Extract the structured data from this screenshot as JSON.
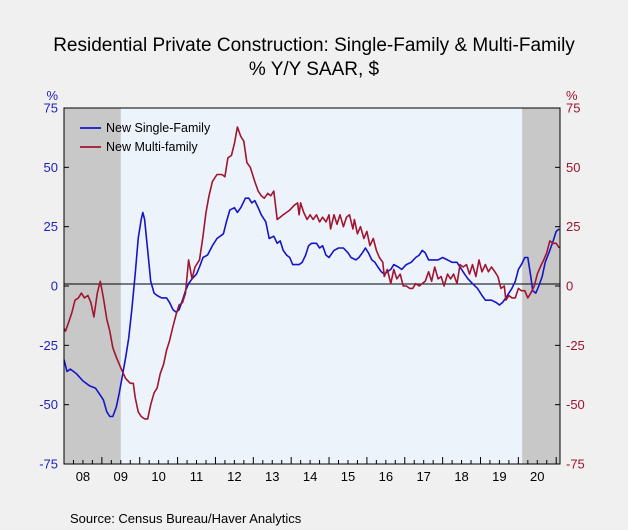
{
  "chart_data": {
    "type": "line",
    "title": "Residential Private Construction: Single-Family & Multi-Family",
    "subtitle": "% Y/Y   SAAR, $",
    "ylabel_left": "%",
    "ylabel_right": "%",
    "ylim": [
      -75,
      75
    ],
    "yticks": [
      75,
      50,
      25,
      0,
      -25,
      -50,
      -75
    ],
    "ytick_labels": [
      "75",
      "50",
      "25",
      "0",
      "-25",
      "-50",
      "-75"
    ],
    "xlim": [
      2008.0,
      2021.1
    ],
    "x_tick_labels": [
      "08",
      "09",
      "10",
      "11",
      "12",
      "13",
      "14",
      "15",
      "16",
      "17",
      "18",
      "19",
      "20"
    ],
    "recessions": [
      [
        2008.0,
        2009.5
      ],
      [
        2020.1,
        2021.1
      ]
    ],
    "legend_placement": "top-left",
    "source": "Source:   Census Bureau/Haver Analytics",
    "colors": {
      "single": "#1515c8",
      "multi": "#a01530",
      "recession": "#c8c8c8",
      "plot_bg": "#edf3fb"
    },
    "series": [
      {
        "name": "New Single-Family",
        "points": [
          [
            2008.0,
            -31
          ],
          [
            2008.08,
            -36
          ],
          [
            2008.17,
            -35
          ],
          [
            2008.33,
            -37
          ],
          [
            2008.5,
            -40
          ],
          [
            2008.67,
            -42
          ],
          [
            2008.83,
            -43
          ],
          [
            2008.96,
            -46
          ],
          [
            2009.04,
            -48
          ],
          [
            2009.13,
            -53
          ],
          [
            2009.21,
            -55
          ],
          [
            2009.29,
            -55
          ],
          [
            2009.38,
            -51
          ],
          [
            2009.46,
            -45
          ],
          [
            2009.54,
            -38
          ],
          [
            2009.63,
            -30
          ],
          [
            2009.71,
            -22
          ],
          [
            2009.79,
            -10
          ],
          [
            2009.88,
            5
          ],
          [
            2009.96,
            20
          ],
          [
            2010.04,
            28
          ],
          [
            2010.08,
            31
          ],
          [
            2010.13,
            28
          ],
          [
            2010.21,
            15
          ],
          [
            2010.29,
            2
          ],
          [
            2010.38,
            -3
          ],
          [
            2010.46,
            -4
          ],
          [
            2010.58,
            -5
          ],
          [
            2010.71,
            -5
          ],
          [
            2010.79,
            -7
          ],
          [
            2010.88,
            -10
          ],
          [
            2010.96,
            -11
          ],
          [
            2011.04,
            -10
          ],
          [
            2011.13,
            -6
          ],
          [
            2011.21,
            -2
          ],
          [
            2011.29,
            1
          ],
          [
            2011.38,
            3
          ],
          [
            2011.5,
            5
          ],
          [
            2011.58,
            8
          ],
          [
            2011.67,
            12
          ],
          [
            2011.79,
            13
          ],
          [
            2011.92,
            17
          ],
          [
            2012.04,
            20
          ],
          [
            2012.21,
            22
          ],
          [
            2012.29,
            27
          ],
          [
            2012.38,
            32
          ],
          [
            2012.5,
            33
          ],
          [
            2012.58,
            31
          ],
          [
            2012.67,
            33
          ],
          [
            2012.79,
            37
          ],
          [
            2012.88,
            37
          ],
          [
            2012.96,
            35
          ],
          [
            2013.04,
            36
          ],
          [
            2013.13,
            33
          ],
          [
            2013.21,
            30
          ],
          [
            2013.33,
            27
          ],
          [
            2013.42,
            20
          ],
          [
            2013.54,
            21
          ],
          [
            2013.63,
            18
          ],
          [
            2013.71,
            19
          ],
          [
            2013.79,
            15
          ],
          [
            2013.88,
            13
          ],
          [
            2013.96,
            12
          ],
          [
            2014.04,
            9
          ],
          [
            2014.21,
            9
          ],
          [
            2014.29,
            10
          ],
          [
            2014.38,
            13
          ],
          [
            2014.46,
            17
          ],
          [
            2014.54,
            18
          ],
          [
            2014.67,
            18
          ],
          [
            2014.75,
            16
          ],
          [
            2014.83,
            17
          ],
          [
            2014.92,
            13
          ],
          [
            2015.0,
            12
          ],
          [
            2015.13,
            15
          ],
          [
            2015.25,
            16
          ],
          [
            2015.38,
            16
          ],
          [
            2015.5,
            14
          ],
          [
            2015.58,
            12
          ],
          [
            2015.71,
            11
          ],
          [
            2015.79,
            12
          ],
          [
            2015.88,
            14
          ],
          [
            2015.96,
            16
          ],
          [
            2016.04,
            14
          ],
          [
            2016.13,
            11
          ],
          [
            2016.21,
            10
          ],
          [
            2016.29,
            8
          ],
          [
            2016.38,
            6
          ],
          [
            2016.46,
            5
          ],
          [
            2016.54,
            6
          ],
          [
            2016.63,
            7
          ],
          [
            2016.71,
            9
          ],
          [
            2016.83,
            8
          ],
          [
            2016.92,
            7
          ],
          [
            2017.04,
            9
          ],
          [
            2017.17,
            10
          ],
          [
            2017.29,
            12
          ],
          [
            2017.38,
            13
          ],
          [
            2017.46,
            15
          ],
          [
            2017.54,
            14
          ],
          [
            2017.63,
            11
          ],
          [
            2017.75,
            11
          ],
          [
            2017.88,
            11
          ],
          [
            2018.0,
            12
          ],
          [
            2018.13,
            11
          ],
          [
            2018.25,
            10
          ],
          [
            2018.38,
            10
          ],
          [
            2018.5,
            7
          ],
          [
            2018.58,
            5
          ],
          [
            2018.67,
            3
          ],
          [
            2018.79,
            1
          ],
          [
            2018.92,
            -1
          ],
          [
            2019.04,
            -4
          ],
          [
            2019.13,
            -6
          ],
          [
            2019.29,
            -6
          ],
          [
            2019.42,
            -7
          ],
          [
            2019.5,
            -8
          ],
          [
            2019.58,
            -7
          ],
          [
            2019.67,
            -5
          ],
          [
            2019.75,
            -3
          ],
          [
            2019.83,
            -1
          ],
          [
            2019.92,
            2
          ],
          [
            2020.0,
            7
          ],
          [
            2020.08,
            9
          ],
          [
            2020.17,
            12
          ],
          [
            2020.25,
            12
          ],
          [
            2020.33,
            4
          ],
          [
            2020.38,
            -2
          ],
          [
            2020.46,
            -3
          ],
          [
            2020.54,
            0
          ],
          [
            2020.63,
            4
          ],
          [
            2020.71,
            10
          ],
          [
            2020.83,
            15
          ],
          [
            2020.92,
            19
          ],
          [
            2021.0,
            23
          ],
          [
            2021.08,
            24
          ]
        ]
      },
      {
        "name": "New Multi-family",
        "points": [
          [
            2008.0,
            -18
          ],
          [
            2008.04,
            -19
          ],
          [
            2008.13,
            -15
          ],
          [
            2008.21,
            -11
          ],
          [
            2008.29,
            -6
          ],
          [
            2008.38,
            -5
          ],
          [
            2008.46,
            -3
          ],
          [
            2008.54,
            -5
          ],
          [
            2008.63,
            -4
          ],
          [
            2008.71,
            -7
          ],
          [
            2008.79,
            -13
          ],
          [
            2008.88,
            -3
          ],
          [
            2008.96,
            2
          ],
          [
            2009.04,
            -5
          ],
          [
            2009.13,
            -14
          ],
          [
            2009.21,
            -19
          ],
          [
            2009.29,
            -26
          ],
          [
            2009.38,
            -30
          ],
          [
            2009.46,
            -33
          ],
          [
            2009.54,
            -36
          ],
          [
            2009.63,
            -39
          ],
          [
            2009.75,
            -41
          ],
          [
            2009.83,
            -41
          ],
          [
            2009.88,
            -47
          ],
          [
            2009.96,
            -53
          ],
          [
            2010.04,
            -55
          ],
          [
            2010.13,
            -56
          ],
          [
            2010.21,
            -56
          ],
          [
            2010.29,
            -50
          ],
          [
            2010.38,
            -45
          ],
          [
            2010.46,
            -43
          ],
          [
            2010.54,
            -37
          ],
          [
            2010.63,
            -33
          ],
          [
            2010.71,
            -27
          ],
          [
            2010.79,
            -23
          ],
          [
            2010.88,
            -17
          ],
          [
            2010.96,
            -12
          ],
          [
            2011.04,
            -8
          ],
          [
            2011.13,
            -7
          ],
          [
            2011.21,
            -3
          ],
          [
            2011.29,
            11
          ],
          [
            2011.38,
            3
          ],
          [
            2011.46,
            8
          ],
          [
            2011.58,
            11
          ],
          [
            2011.67,
            21
          ],
          [
            2011.75,
            31
          ],
          [
            2011.83,
            38
          ],
          [
            2011.92,
            44
          ],
          [
            2012.04,
            47
          ],
          [
            2012.17,
            47
          ],
          [
            2012.25,
            46
          ],
          [
            2012.33,
            54
          ],
          [
            2012.42,
            55
          ],
          [
            2012.5,
            60
          ],
          [
            2012.58,
            67
          ],
          [
            2012.67,
            63
          ],
          [
            2012.75,
            61
          ],
          [
            2012.83,
            52
          ],
          [
            2012.92,
            50
          ],
          [
            2013.04,
            44
          ],
          [
            2013.13,
            40
          ],
          [
            2013.21,
            38
          ],
          [
            2013.29,
            37
          ],
          [
            2013.38,
            39
          ],
          [
            2013.46,
            38
          ],
          [
            2013.54,
            40
          ],
          [
            2013.63,
            28
          ],
          [
            2013.71,
            29
          ],
          [
            2013.79,
            30
          ],
          [
            2013.88,
            31
          ],
          [
            2013.96,
            32
          ],
          [
            2014.08,
            34
          ],
          [
            2014.17,
            35
          ],
          [
            2014.21,
            30
          ],
          [
            2014.25,
            35
          ],
          [
            2014.33,
            31
          ],
          [
            2014.42,
            28
          ],
          [
            2014.5,
            30
          ],
          [
            2014.58,
            28
          ],
          [
            2014.67,
            30
          ],
          [
            2014.75,
            27
          ],
          [
            2014.83,
            29
          ],
          [
            2014.92,
            27
          ],
          [
            2015.0,
            30
          ],
          [
            2015.04,
            24
          ],
          [
            2015.13,
            30
          ],
          [
            2015.21,
            26
          ],
          [
            2015.29,
            30
          ],
          [
            2015.38,
            25
          ],
          [
            2015.46,
            29
          ],
          [
            2015.54,
            30
          ],
          [
            2015.63,
            24
          ],
          [
            2015.67,
            28
          ],
          [
            2015.75,
            22
          ],
          [
            2015.83,
            25
          ],
          [
            2015.92,
            20
          ],
          [
            2016.0,
            23
          ],
          [
            2016.08,
            17
          ],
          [
            2016.17,
            20
          ],
          [
            2016.25,
            15
          ],
          [
            2016.33,
            12
          ],
          [
            2016.42,
            10
          ],
          [
            2016.46,
            4
          ],
          [
            2016.54,
            7
          ],
          [
            2016.63,
            1
          ],
          [
            2016.71,
            7
          ],
          [
            2016.79,
            3
          ],
          [
            2016.88,
            5
          ],
          [
            2016.96,
            0
          ],
          [
            2017.04,
            0
          ],
          [
            2017.13,
            -1
          ],
          [
            2017.21,
            -1
          ],
          [
            2017.29,
            1
          ],
          [
            2017.38,
            0
          ],
          [
            2017.46,
            1
          ],
          [
            2017.54,
            2
          ],
          [
            2017.63,
            6
          ],
          [
            2017.71,
            2
          ],
          [
            2017.79,
            8
          ],
          [
            2017.88,
            3
          ],
          [
            2017.96,
            4
          ],
          [
            2018.04,
            0
          ],
          [
            2018.13,
            5
          ],
          [
            2018.21,
            3
          ],
          [
            2018.29,
            5
          ],
          [
            2018.38,
            1
          ],
          [
            2018.46,
            9
          ],
          [
            2018.54,
            8
          ],
          [
            2018.63,
            9
          ],
          [
            2018.71,
            5
          ],
          [
            2018.79,
            9
          ],
          [
            2018.88,
            4
          ],
          [
            2018.96,
            11
          ],
          [
            2019.04,
            6
          ],
          [
            2019.13,
            9
          ],
          [
            2019.21,
            6
          ],
          [
            2019.29,
            8
          ],
          [
            2019.38,
            6
          ],
          [
            2019.46,
            4
          ],
          [
            2019.54,
            -1
          ],
          [
            2019.63,
            0
          ],
          [
            2019.67,
            -6
          ],
          [
            2019.75,
            -4
          ],
          [
            2019.83,
            -5
          ],
          [
            2019.92,
            -5
          ],
          [
            2020.0,
            -1
          ],
          [
            2020.08,
            -2
          ],
          [
            2020.17,
            -2
          ],
          [
            2020.25,
            -5
          ],
          [
            2020.33,
            -3
          ],
          [
            2020.42,
            0
          ],
          [
            2020.5,
            5
          ],
          [
            2020.58,
            8
          ],
          [
            2020.67,
            11
          ],
          [
            2020.75,
            14
          ],
          [
            2020.83,
            19
          ],
          [
            2020.92,
            18
          ],
          [
            2021.0,
            18
          ],
          [
            2021.08,
            16
          ]
        ]
      }
    ]
  }
}
